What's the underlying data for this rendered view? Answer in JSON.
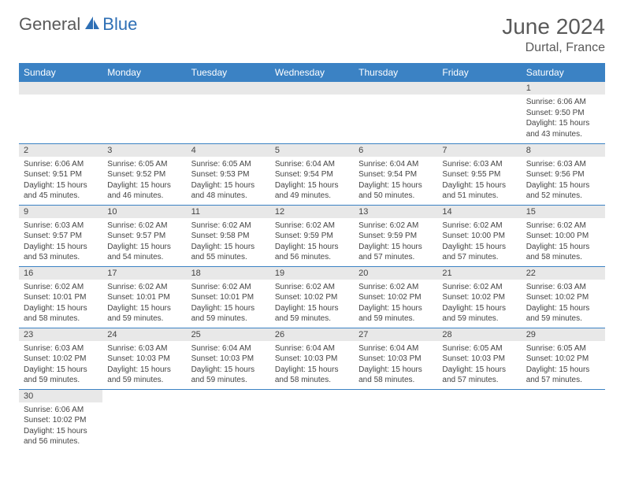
{
  "brand": {
    "main": "General",
    "accent": "Blue"
  },
  "title": "June 2024",
  "location": "Durtal, France",
  "colors": {
    "header_bg": "#3b82c4",
    "header_text": "#ffffff",
    "daynum_bg": "#e8e8e8",
    "border": "#3b82c4",
    "text": "#444444",
    "title_text": "#5a5a5a",
    "accent": "#2e6fb5"
  },
  "weekdays": [
    "Sunday",
    "Monday",
    "Tuesday",
    "Wednesday",
    "Thursday",
    "Friday",
    "Saturday"
  ],
  "days": {
    "1": {
      "sunrise": "6:06 AM",
      "sunset": "9:50 PM",
      "daylight": "15 hours and 43 minutes."
    },
    "2": {
      "sunrise": "6:06 AM",
      "sunset": "9:51 PM",
      "daylight": "15 hours and 45 minutes."
    },
    "3": {
      "sunrise": "6:05 AM",
      "sunset": "9:52 PM",
      "daylight": "15 hours and 46 minutes."
    },
    "4": {
      "sunrise": "6:05 AM",
      "sunset": "9:53 PM",
      "daylight": "15 hours and 48 minutes."
    },
    "5": {
      "sunrise": "6:04 AM",
      "sunset": "9:54 PM",
      "daylight": "15 hours and 49 minutes."
    },
    "6": {
      "sunrise": "6:04 AM",
      "sunset": "9:54 PM",
      "daylight": "15 hours and 50 minutes."
    },
    "7": {
      "sunrise": "6:03 AM",
      "sunset": "9:55 PM",
      "daylight": "15 hours and 51 minutes."
    },
    "8": {
      "sunrise": "6:03 AM",
      "sunset": "9:56 PM",
      "daylight": "15 hours and 52 minutes."
    },
    "9": {
      "sunrise": "6:03 AM",
      "sunset": "9:57 PM",
      "daylight": "15 hours and 53 minutes."
    },
    "10": {
      "sunrise": "6:02 AM",
      "sunset": "9:57 PM",
      "daylight": "15 hours and 54 minutes."
    },
    "11": {
      "sunrise": "6:02 AM",
      "sunset": "9:58 PM",
      "daylight": "15 hours and 55 minutes."
    },
    "12": {
      "sunrise": "6:02 AM",
      "sunset": "9:59 PM",
      "daylight": "15 hours and 56 minutes."
    },
    "13": {
      "sunrise": "6:02 AM",
      "sunset": "9:59 PM",
      "daylight": "15 hours and 57 minutes."
    },
    "14": {
      "sunrise": "6:02 AM",
      "sunset": "10:00 PM",
      "daylight": "15 hours and 57 minutes."
    },
    "15": {
      "sunrise": "6:02 AM",
      "sunset": "10:00 PM",
      "daylight": "15 hours and 58 minutes."
    },
    "16": {
      "sunrise": "6:02 AM",
      "sunset": "10:01 PM",
      "daylight": "15 hours and 58 minutes."
    },
    "17": {
      "sunrise": "6:02 AM",
      "sunset": "10:01 PM",
      "daylight": "15 hours and 59 minutes."
    },
    "18": {
      "sunrise": "6:02 AM",
      "sunset": "10:01 PM",
      "daylight": "15 hours and 59 minutes."
    },
    "19": {
      "sunrise": "6:02 AM",
      "sunset": "10:02 PM",
      "daylight": "15 hours and 59 minutes."
    },
    "20": {
      "sunrise": "6:02 AM",
      "sunset": "10:02 PM",
      "daylight": "15 hours and 59 minutes."
    },
    "21": {
      "sunrise": "6:02 AM",
      "sunset": "10:02 PM",
      "daylight": "15 hours and 59 minutes."
    },
    "22": {
      "sunrise": "6:03 AM",
      "sunset": "10:02 PM",
      "daylight": "15 hours and 59 minutes."
    },
    "23": {
      "sunrise": "6:03 AM",
      "sunset": "10:02 PM",
      "daylight": "15 hours and 59 minutes."
    },
    "24": {
      "sunrise": "6:03 AM",
      "sunset": "10:03 PM",
      "daylight": "15 hours and 59 minutes."
    },
    "25": {
      "sunrise": "6:04 AM",
      "sunset": "10:03 PM",
      "daylight": "15 hours and 59 minutes."
    },
    "26": {
      "sunrise": "6:04 AM",
      "sunset": "10:03 PM",
      "daylight": "15 hours and 58 minutes."
    },
    "27": {
      "sunrise": "6:04 AM",
      "sunset": "10:03 PM",
      "daylight": "15 hours and 58 minutes."
    },
    "28": {
      "sunrise": "6:05 AM",
      "sunset": "10:03 PM",
      "daylight": "15 hours and 57 minutes."
    },
    "29": {
      "sunrise": "6:05 AM",
      "sunset": "10:02 PM",
      "daylight": "15 hours and 57 minutes."
    },
    "30": {
      "sunrise": "6:06 AM",
      "sunset": "10:02 PM",
      "daylight": "15 hours and 56 minutes."
    }
  },
  "labels": {
    "sunrise": "Sunrise:",
    "sunset": "Sunset:",
    "daylight": "Daylight:"
  },
  "layout": {
    "first_weekday_index": 6,
    "num_days": 30,
    "cell_fontsize_pt": 10,
    "daynum_fontsize_pt": 11,
    "header_fontsize_pt": 12
  }
}
